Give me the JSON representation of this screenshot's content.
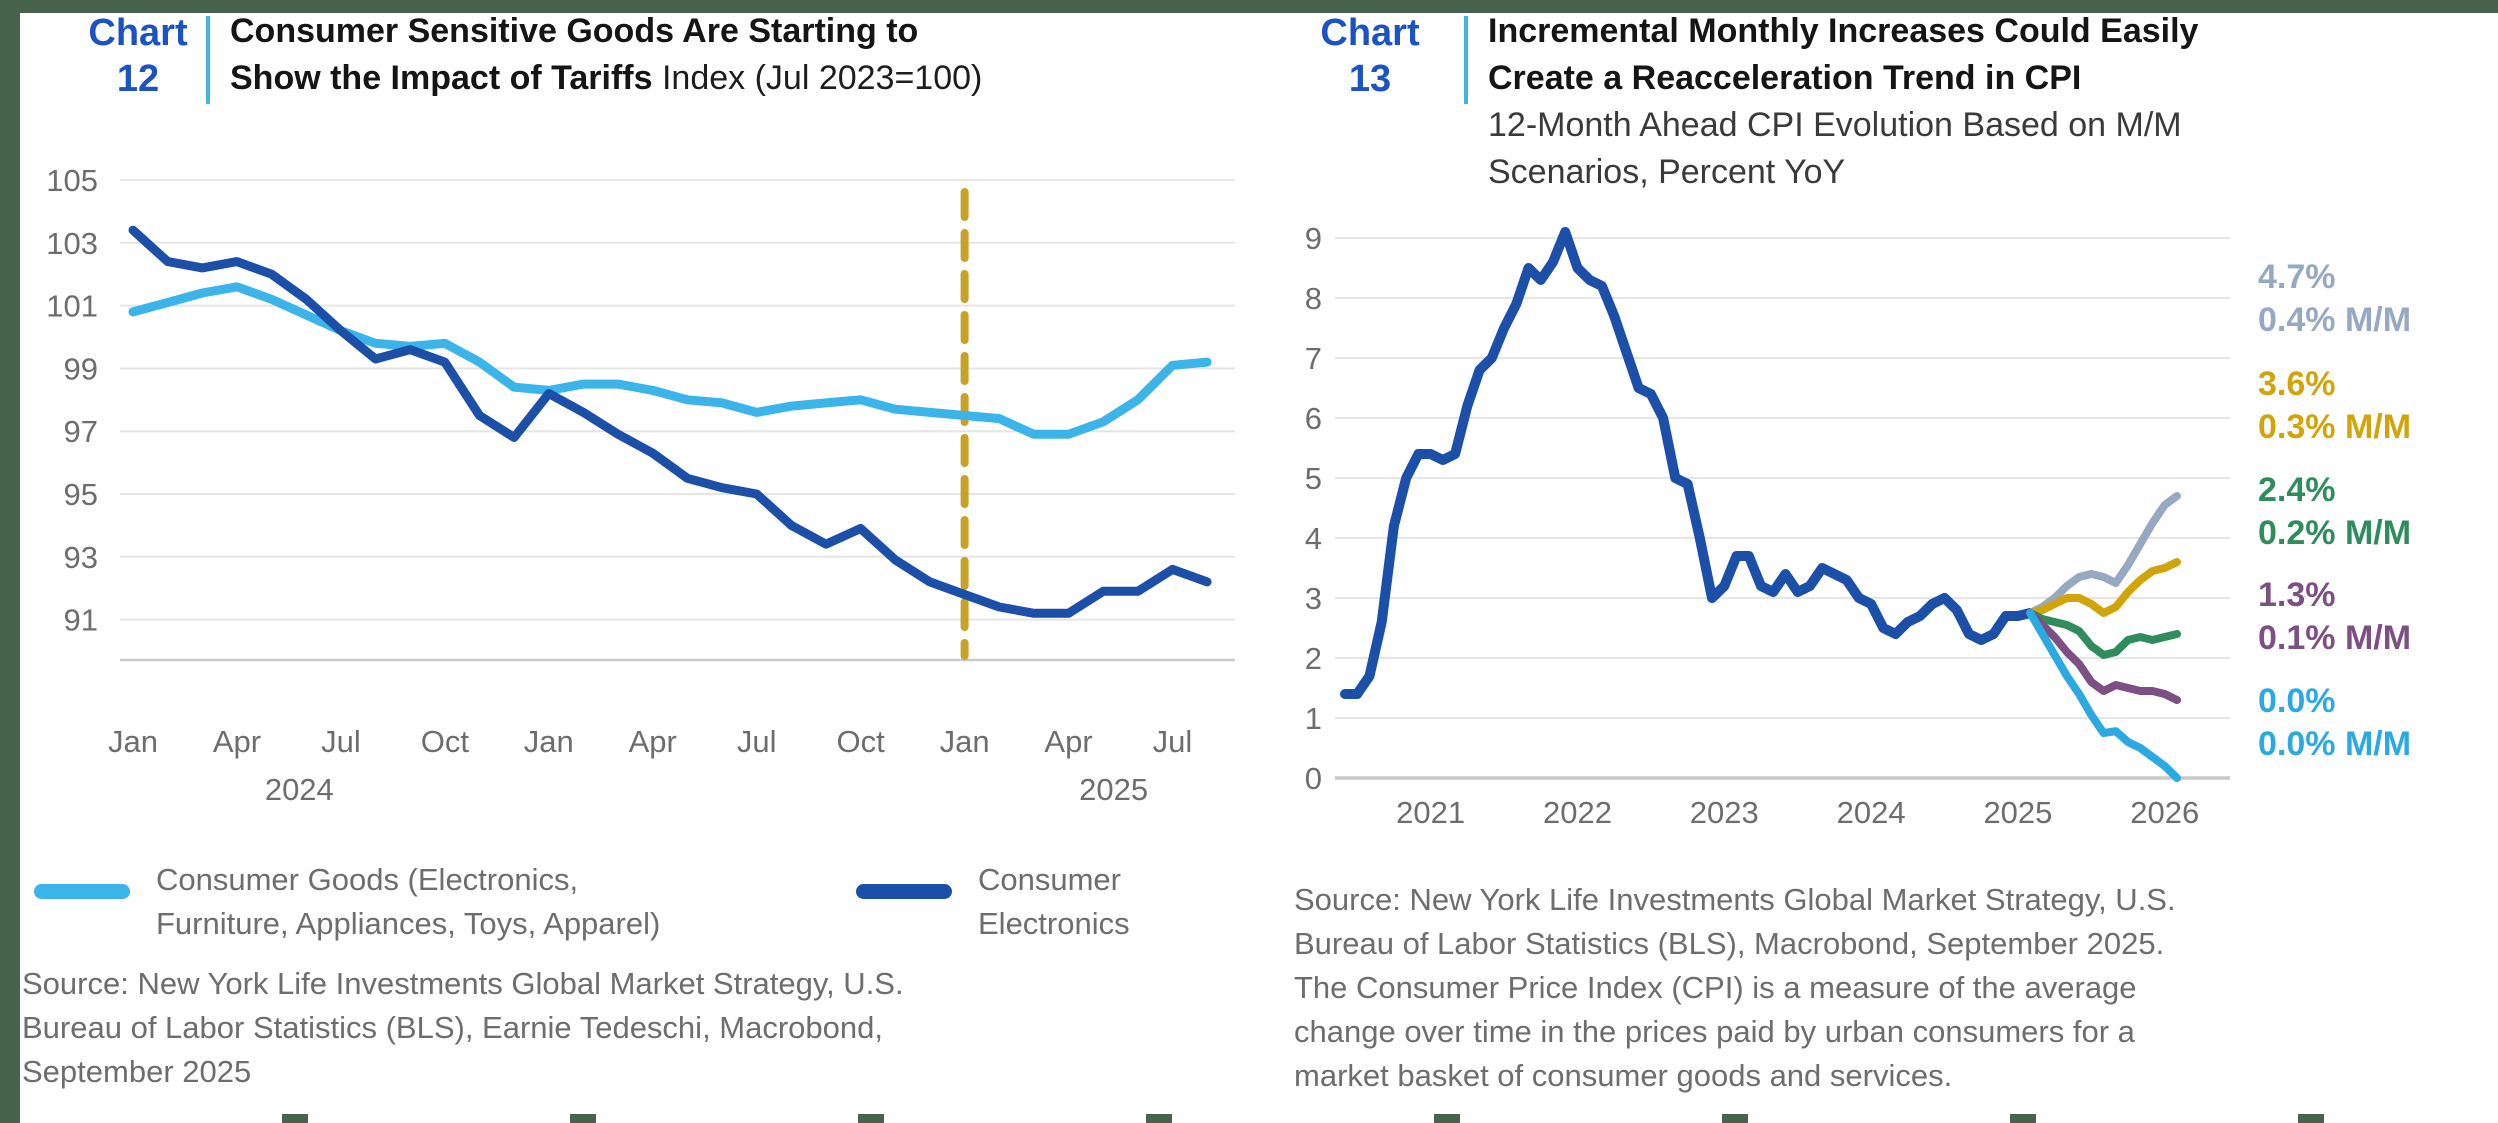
{
  "page": {
    "frame_color": "#47634B",
    "accent_blue": "#1B52C4",
    "divider_color": "#41B6E6"
  },
  "chart12": {
    "header": {
      "label": "Chart",
      "number": "12",
      "title_line1": "Consumer Sensitive Goods Are Starting to",
      "title_line2_bold": "Show the Impact of Tariffs",
      "title_line2_normal": " Index (Jul 2023=100)"
    },
    "legend": {
      "items": [
        {
          "color": "#3BB4E9",
          "line1": "Consumer Goods (Electronics,",
          "line2": "Furniture, Appliances, Toys, Apparel)"
        },
        {
          "color": "#1C4FA8",
          "line1": "Consumer",
          "line2": "Electronics"
        }
      ]
    },
    "source": {
      "line1": "Source: New York Life Investments Global Market Strategy, U.S.",
      "line2": "Bureau of Labor Statistics (BLS), Earnie Tedeschi, Macrobond,",
      "line3": "September 2025"
    },
    "chart_data": {
      "type": "line",
      "title": "Consumer Sensitive Goods Are Starting to Show the Impact of Tariffs",
      "ylabel": "Index (Jul 2023=100)",
      "x_unit": "month",
      "x_start": "Jan 2023",
      "x_end": "Aug 2025",
      "ylim": [
        89.9,
        106
      ],
      "yticks": [
        91,
        93,
        95,
        97,
        99,
        101,
        103,
        105
      ],
      "grid": true,
      "x_tick_labels": [
        "Jan",
        "Apr",
        "Jul",
        "Oct",
        "Jan",
        "Apr",
        "Jul",
        "Oct",
        "Jan",
        "Apr",
        "Jul"
      ],
      "x_tick_indices": [
        0,
        3,
        6,
        9,
        12,
        15,
        18,
        21,
        24,
        27,
        30
      ],
      "year_labels": [
        {
          "text": "2024",
          "index": 4.8
        },
        {
          "text": "2025",
          "index": 28.3
        }
      ],
      "vline": {
        "index": 24,
        "at": "Jan 2025",
        "color": "#C7A227",
        "style": "dashed"
      },
      "series": [
        {
          "name": "Consumer Goods (Electronics, Furniture, Appliances, Toys, Apparel)",
          "color": "#3BB4E9",
          "values": [
            100.8,
            101.1,
            101.4,
            101.6,
            101.2,
            100.7,
            100.2,
            99.8,
            99.7,
            99.8,
            99.2,
            98.4,
            98.3,
            98.5,
            98.5,
            98.3,
            98.0,
            97.9,
            97.6,
            97.8,
            97.9,
            98.0,
            97.7,
            97.6,
            97.5,
            97.4,
            96.9,
            96.9,
            97.3,
            98.0,
            99.1,
            99.2
          ]
        },
        {
          "name": "Consumer Electronics",
          "color": "#1C4FA8",
          "values": [
            103.4,
            102.4,
            102.2,
            102.4,
            102.0,
            101.2,
            100.2,
            99.3,
            99.6,
            99.2,
            97.5,
            96.8,
            98.2,
            97.6,
            96.9,
            96.3,
            95.5,
            95.2,
            95.0,
            94.0,
            93.4,
            93.9,
            92.9,
            92.2,
            91.8,
            91.4,
            91.2,
            91.2,
            91.9,
            91.9,
            92.6,
            92.2
          ]
        }
      ]
    }
  },
  "chart13": {
    "header": {
      "label": "Chart",
      "number": "13",
      "title_line1": "Incremental Monthly Increases Could Easily",
      "title_line2": "Create a Reacceleration Trend in CPI",
      "subtitle_line1": "12-Month Ahead CPI Evolution Based on M/M",
      "subtitle_line2": "Scenarios, Percent YoY"
    },
    "scenario_labels": [
      {
        "pct": "4.7%",
        "mm": "0.4% M/M",
        "color": "#97A8C2"
      },
      {
        "pct": "3.6%",
        "mm": "0.3% M/M",
        "color": "#D2A40B"
      },
      {
        "pct": "2.4%",
        "mm": "0.2% M/M",
        "color": "#2F8C5C"
      },
      {
        "pct": "1.3%",
        "mm": "0.1% M/M",
        "color": "#7D5083"
      },
      {
        "pct": "0.0%",
        "mm": "0.0% M/M",
        "color": "#2BAAE2"
      }
    ],
    "source": {
      "line1": "Source: New York Life Investments Global Market Strategy, U.S.",
      "line2": "Bureau of Labor Statistics (BLS), Macrobond, September 2025.",
      "line3": "The Consumer Price Index (CPI) is a measure of the average",
      "line4": "change over time in the prices paid by urban consumers for a",
      "line5": "market basket of consumer goods and services."
    },
    "chart_data": {
      "type": "line",
      "title": "Incremental Monthly Increases Could Easily Create a Reacceleration Trend in CPI",
      "ylabel": "12-Month Ahead CPI Evolution Based on M/M Scenarios, Percent YoY",
      "x_unit": "month",
      "x_start": "Dec 2020",
      "x_end": "Aug 2026",
      "ylim": [
        0,
        9.4
      ],
      "yticks": [
        0,
        1,
        2,
        3,
        4,
        5,
        6,
        7,
        8,
        9
      ],
      "baseline_value": 0,
      "grid": true,
      "x_tick_labels": [
        "2021",
        "2022",
        "2023",
        "2024",
        "2025",
        "2026"
      ],
      "x_tick_indices": [
        7,
        19,
        31,
        43,
        55,
        67
      ],
      "year_labels": [],
      "series": [
        {
          "name": "CPI, Percent YoY (actual)",
          "color": "#1C4FA8",
          "start_index": 0,
          "values": [
            1.4,
            1.4,
            1.7,
            2.6,
            4.2,
            5.0,
            5.4,
            5.4,
            5.3,
            5.4,
            6.2,
            6.8,
            7.0,
            7.5,
            7.9,
            8.5,
            8.3,
            8.6,
            9.1,
            8.5,
            8.3,
            8.2,
            7.7,
            7.1,
            6.5,
            6.4,
            6.0,
            5.0,
            4.9,
            4.0,
            3.0,
            3.2,
            3.7,
            3.7,
            3.2,
            3.1,
            3.4,
            3.1,
            3.2,
            3.5,
            3.4,
            3.3,
            3.0,
            2.9,
            2.5,
            2.4,
            2.6,
            2.7,
            2.9,
            3.0,
            2.8,
            2.4,
            2.3,
            2.4,
            2.7,
            2.7,
            2.75
          ]
        },
        {
          "name": "0.4% M/M scenario, ends 4.7%",
          "color": "#97A8C2",
          "start_index": 56,
          "values": [
            2.75,
            2.85,
            3.0,
            3.2,
            3.35,
            3.4,
            3.35,
            3.25,
            3.55,
            3.9,
            4.25,
            4.55,
            4.7
          ]
        },
        {
          "name": "0.3% M/M scenario, ends 3.6%",
          "color": "#D2A40B",
          "start_index": 56,
          "values": [
            2.75,
            2.8,
            2.9,
            3.0,
            3.0,
            2.9,
            2.75,
            2.85,
            3.1,
            3.3,
            3.45,
            3.5,
            3.6
          ]
        },
        {
          "name": "0.2% M/M scenario, ends 2.4%",
          "color": "#2F8C5C",
          "start_index": 56,
          "values": [
            2.75,
            2.65,
            2.6,
            2.55,
            2.45,
            2.2,
            2.05,
            2.1,
            2.3,
            2.35,
            2.3,
            2.35,
            2.4
          ]
        },
        {
          "name": "0.1% M/M scenario, ends 1.3%",
          "color": "#7D5083",
          "start_index": 56,
          "values": [
            2.75,
            2.55,
            2.35,
            2.1,
            1.9,
            1.6,
            1.45,
            1.55,
            1.5,
            1.45,
            1.45,
            1.4,
            1.3
          ]
        },
        {
          "name": "0.0% M/M scenario, ends 0.0%",
          "color": "#2BAAE2",
          "start_index": 56,
          "values": [
            2.75,
            2.4,
            2.05,
            1.7,
            1.4,
            1.05,
            0.75,
            0.78,
            0.6,
            0.5,
            0.35,
            0.2,
            0.0
          ]
        }
      ]
    }
  }
}
